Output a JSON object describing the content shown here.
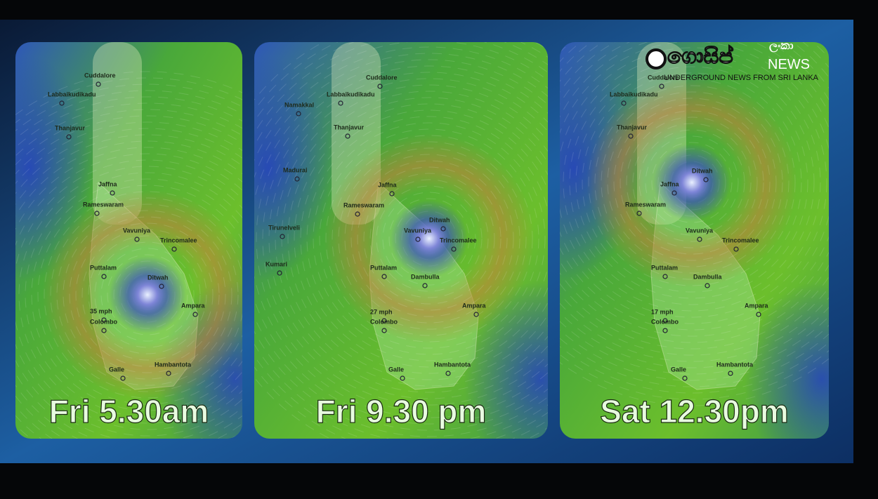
{
  "logo": {
    "name": "ගොසිප්",
    "suffix": "ලංකා",
    "news": "NEWS",
    "tagline": "UNDERGROUND NEWS FROM SRI LANKA"
  },
  "panels": [
    {
      "caption": "Fri 5.30am",
      "places": [
        "Cuddalore",
        "Labbaikudikadu",
        "Thanjavur",
        "Jaffna",
        "Rameswaram",
        "Vavuniya",
        "Trincomalee",
        "Puttalam",
        "Ditwah",
        "Ampara",
        "35 mph",
        "Colombo",
        "Galle",
        "Hambantota"
      ]
    },
    {
      "caption": "Fri 9.30 pm",
      "places": [
        "Cuddalore",
        "Labbaikudikadu",
        "Namakkal",
        "Thanjavur",
        "Madurai",
        "Jaffna",
        "Rameswaram",
        "Tirunelveli",
        "Ditwah",
        "Vavuniya",
        "Trincomalee",
        "Kumari",
        "Puttalam",
        "Dambulla",
        "Ampara",
        "27 mph",
        "Colombo",
        "Galle",
        "Hambantota"
      ]
    },
    {
      "caption": "Sat 12.30pm",
      "places": [
        "Cuddalore",
        "Labbaikudikadu",
        "Thanjavur",
        "Ditwah",
        "Jaffna",
        "Rameswaram",
        "Vavuniya",
        "Trincomalee",
        "Puttalam",
        "Dambulla",
        "Ampara",
        "17 mph",
        "Colombo",
        "Galle",
        "Hambantota"
      ]
    }
  ]
}
